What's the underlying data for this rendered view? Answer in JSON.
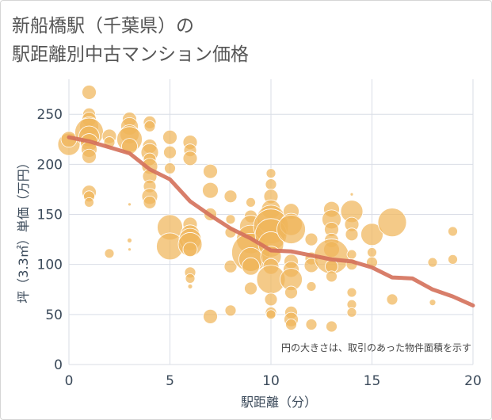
{
  "title_lines": [
    "新船橋駅（千葉県）の",
    "駅距離別中古マンション価格"
  ],
  "chart_data": {
    "type": "scatter",
    "xlabel": "駅距離（分）",
    "ylabel": "坪（3.3㎡）単価（万円）",
    "xlim": [
      0,
      20
    ],
    "ylim": [
      0,
      285
    ],
    "xticks": [
      0,
      5,
      10,
      15,
      20
    ],
    "yticks": [
      0,
      50,
      100,
      150,
      200,
      250
    ],
    "grid": true,
    "annotation": "円の大きさは、取引のあった物件面積を示す",
    "colors": {
      "bubble": "#f0b65a",
      "trend": "#d4705a",
      "grid": "#d9dde6",
      "axis_text": "#3b4a5a"
    },
    "bubbles": [
      {
        "x": 0,
        "y": 220,
        "s": 14
      },
      {
        "x": 0,
        "y": 225,
        "s": 10
      },
      {
        "x": 1,
        "y": 272,
        "s": 9
      },
      {
        "x": 1,
        "y": 250,
        "s": 8
      },
      {
        "x": 1,
        "y": 245,
        "s": 9
      },
      {
        "x": 1,
        "y": 238,
        "s": 12
      },
      {
        "x": 1,
        "y": 232,
        "s": 18
      },
      {
        "x": 1,
        "y": 228,
        "s": 13
      },
      {
        "x": 1,
        "y": 222,
        "s": 11
      },
      {
        "x": 1,
        "y": 215,
        "s": 10
      },
      {
        "x": 1,
        "y": 208,
        "s": 9
      },
      {
        "x": 1,
        "y": 172,
        "s": 9
      },
      {
        "x": 1,
        "y": 168,
        "s": 7
      },
      {
        "x": 1,
        "y": 162,
        "s": 6
      },
      {
        "x": 2,
        "y": 228,
        "s": 9
      },
      {
        "x": 2,
        "y": 222,
        "s": 7
      },
      {
        "x": 2,
        "y": 111,
        "s": 6
      },
      {
        "x": 3,
        "y": 245,
        "s": 9
      },
      {
        "x": 3,
        "y": 238,
        "s": 11
      },
      {
        "x": 3,
        "y": 230,
        "s": 12
      },
      {
        "x": 3,
        "y": 225,
        "s": 16
      },
      {
        "x": 3,
        "y": 218,
        "s": 10
      },
      {
        "x": 3,
        "y": 160,
        "s": 2
      },
      {
        "x": 3,
        "y": 124,
        "s": 3
      },
      {
        "x": 3,
        "y": 115,
        "s": 2
      },
      {
        "x": 4,
        "y": 242,
        "s": 8
      },
      {
        "x": 4,
        "y": 238,
        "s": 7
      },
      {
        "x": 4,
        "y": 218,
        "s": 9
      },
      {
        "x": 4,
        "y": 212,
        "s": 11
      },
      {
        "x": 4,
        "y": 205,
        "s": 8
      },
      {
        "x": 4,
        "y": 198,
        "s": 10
      },
      {
        "x": 4,
        "y": 188,
        "s": 9
      },
      {
        "x": 4,
        "y": 178,
        "s": 8
      },
      {
        "x": 4,
        "y": 168,
        "s": 10
      },
      {
        "x": 4,
        "y": 162,
        "s": 8
      },
      {
        "x": 5,
        "y": 227,
        "s": 9
      },
      {
        "x": 5,
        "y": 212,
        "s": 8
      },
      {
        "x": 5,
        "y": 196,
        "s": 7
      },
      {
        "x": 5,
        "y": 137,
        "s": 16
      },
      {
        "x": 5,
        "y": 118,
        "s": 17
      },
      {
        "x": 6,
        "y": 222,
        "s": 9
      },
      {
        "x": 6,
        "y": 214,
        "s": 8
      },
      {
        "x": 6,
        "y": 206,
        "s": 9
      },
      {
        "x": 6,
        "y": 140,
        "s": 9
      },
      {
        "x": 6,
        "y": 130,
        "s": 12
      },
      {
        "x": 6,
        "y": 125,
        "s": 14
      },
      {
        "x": 6,
        "y": 120,
        "s": 15
      },
      {
        "x": 6,
        "y": 115,
        "s": 9
      },
      {
        "x": 6,
        "y": 92,
        "s": 7
      },
      {
        "x": 6,
        "y": 86,
        "s": 6
      },
      {
        "x": 6,
        "y": 78,
        "s": 3
      },
      {
        "x": 7,
        "y": 193,
        "s": 9
      },
      {
        "x": 7,
        "y": 174,
        "s": 10
      },
      {
        "x": 7,
        "y": 150,
        "s": 8
      },
      {
        "x": 7,
        "y": 48,
        "s": 9
      },
      {
        "x": 8,
        "y": 168,
        "s": 8
      },
      {
        "x": 8,
        "y": 145,
        "s": 6
      },
      {
        "x": 8,
        "y": 132,
        "s": 7
      },
      {
        "x": 8,
        "y": 98,
        "s": 8
      },
      {
        "x": 8,
        "y": 54,
        "s": 7
      },
      {
        "x": 9,
        "y": 162,
        "s": 6
      },
      {
        "x": 9,
        "y": 148,
        "s": 8
      },
      {
        "x": 9,
        "y": 138,
        "s": 14
      },
      {
        "x": 9,
        "y": 125,
        "s": 18
      },
      {
        "x": 9,
        "y": 112,
        "s": 24
      },
      {
        "x": 9,
        "y": 105,
        "s": 15
      },
      {
        "x": 9,
        "y": 98,
        "s": 11
      },
      {
        "x": 9,
        "y": 76,
        "s": 8
      },
      {
        "x": 10,
        "y": 191,
        "s": 6
      },
      {
        "x": 10,
        "y": 180,
        "s": 7
      },
      {
        "x": 10,
        "y": 168,
        "s": 9
      },
      {
        "x": 10,
        "y": 155,
        "s": 12
      },
      {
        "x": 10,
        "y": 145,
        "s": 18
      },
      {
        "x": 10,
        "y": 138,
        "s": 22
      },
      {
        "x": 10,
        "y": 130,
        "s": 20
      },
      {
        "x": 10,
        "y": 120,
        "s": 16
      },
      {
        "x": 10,
        "y": 108,
        "s": 13
      },
      {
        "x": 10,
        "y": 98,
        "s": 10
      },
      {
        "x": 10,
        "y": 85,
        "s": 18
      },
      {
        "x": 10,
        "y": 65,
        "s": 8
      },
      {
        "x": 10,
        "y": 52,
        "s": 7
      },
      {
        "x": 10,
        "y": 50,
        "s": 6
      },
      {
        "x": 11,
        "y": 153,
        "s": 10
      },
      {
        "x": 11,
        "y": 140,
        "s": 14
      },
      {
        "x": 11,
        "y": 135,
        "s": 18
      },
      {
        "x": 11,
        "y": 103,
        "s": 9
      },
      {
        "x": 11,
        "y": 95,
        "s": 10
      },
      {
        "x": 11,
        "y": 85,
        "s": 14
      },
      {
        "x": 11,
        "y": 72,
        "s": 8
      },
      {
        "x": 11,
        "y": 52,
        "s": 8
      },
      {
        "x": 11,
        "y": 45,
        "s": 9
      },
      {
        "x": 11,
        "y": 40,
        "s": 7
      },
      {
        "x": 12,
        "y": 125,
        "s": 8
      },
      {
        "x": 12,
        "y": 106,
        "s": 8
      },
      {
        "x": 12,
        "y": 99,
        "s": 9
      },
      {
        "x": 12,
        "y": 78,
        "s": 6
      },
      {
        "x": 12,
        "y": 40,
        "s": 7
      },
      {
        "x": 13,
        "y": 155,
        "s": 10
      },
      {
        "x": 13,
        "y": 145,
        "s": 12
      },
      {
        "x": 13,
        "y": 135,
        "s": 9
      },
      {
        "x": 13,
        "y": 124,
        "s": 9
      },
      {
        "x": 13,
        "y": 115,
        "s": 10
      },
      {
        "x": 13,
        "y": 108,
        "s": 22
      },
      {
        "x": 13,
        "y": 98,
        "s": 8
      },
      {
        "x": 13,
        "y": 88,
        "s": 7
      },
      {
        "x": 13,
        "y": 38,
        "s": 7
      },
      {
        "x": 14,
        "y": 170,
        "s": 2
      },
      {
        "x": 14,
        "y": 153,
        "s": 14
      },
      {
        "x": 14,
        "y": 140,
        "s": 9
      },
      {
        "x": 14,
        "y": 130,
        "s": 8
      },
      {
        "x": 14,
        "y": 110,
        "s": 6
      },
      {
        "x": 14,
        "y": 100,
        "s": 7
      },
      {
        "x": 14,
        "y": 72,
        "s": 6
      },
      {
        "x": 14,
        "y": 60,
        "s": 6
      },
      {
        "x": 14,
        "y": 52,
        "s": 6
      },
      {
        "x": 15,
        "y": 130,
        "s": 14
      },
      {
        "x": 15,
        "y": 112,
        "s": 6
      },
      {
        "x": 15,
        "y": 102,
        "s": 7
      },
      {
        "x": 16,
        "y": 142,
        "s": 18
      },
      {
        "x": 16,
        "y": 65,
        "s": 7
      },
      {
        "x": 18,
        "y": 102,
        "s": 6
      },
      {
        "x": 18,
        "y": 62,
        "s": 4
      },
      {
        "x": 19,
        "y": 133,
        "s": 6
      },
      {
        "x": 19,
        "y": 105,
        "s": 6
      }
    ],
    "trend": {
      "x": [
        0,
        1,
        2,
        3,
        4,
        5,
        6,
        7,
        8,
        9,
        10,
        11,
        12,
        13,
        14,
        15,
        16,
        17,
        18,
        19,
        20
      ],
      "y": [
        227,
        223,
        217,
        211,
        195,
        185,
        163,
        149,
        136,
        126,
        114,
        113,
        109,
        105,
        103,
        97,
        87,
        86,
        75,
        68,
        59
      ]
    }
  }
}
